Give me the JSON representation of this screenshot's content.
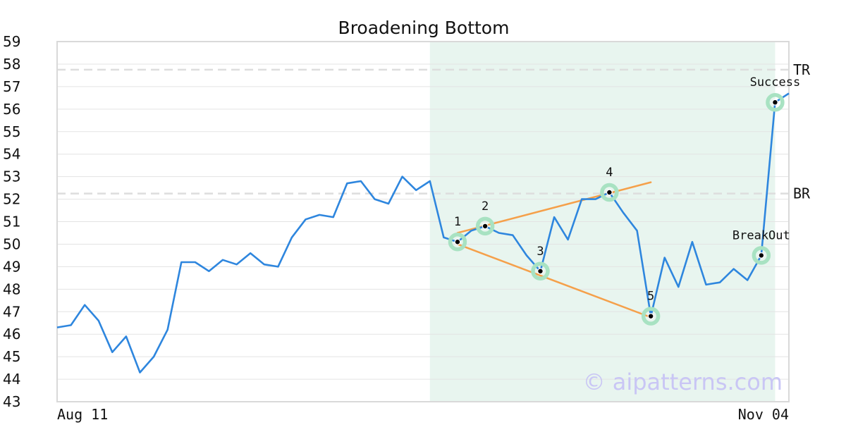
{
  "chart_data": {
    "type": "line",
    "title": "Broadening Bottom",
    "watermark": "© aipatterns.com",
    "ylim": [
      43,
      59
    ],
    "yticks": [
      43,
      44,
      45,
      46,
      47,
      48,
      49,
      50,
      51,
      52,
      53,
      54,
      55,
      56,
      57,
      58,
      59
    ],
    "x_tick_labels": [
      "Aug 11",
      "Nov 04"
    ],
    "colors": {
      "line": "#2e86de",
      "trend": "#f5a04a",
      "highlight": "#e8f5ef",
      "marker_ring": "#a8e2c2",
      "grid": "#e3e3e3",
      "reference": "#dddddd"
    },
    "values": [
      46.3,
      46.4,
      47.3,
      46.6,
      45.2,
      45.9,
      44.3,
      45.0,
      46.2,
      49.2,
      49.2,
      48.8,
      49.3,
      49.1,
      49.6,
      49.1,
      49.0,
      50.3,
      51.1,
      51.3,
      51.2,
      52.7,
      52.8,
      52.0,
      51.8,
      53.0,
      52.4,
      52.8,
      50.3,
      50.1,
      50.6,
      50.8,
      50.5,
      50.4,
      49.5,
      48.8,
      51.2,
      50.2,
      52.0,
      52.0,
      52.3,
      51.4,
      50.6,
      46.8,
      49.4,
      48.1,
      50.1,
      48.2,
      48.3,
      48.9,
      48.4,
      49.5,
      56.3,
      56.7
    ],
    "highlight_range": [
      27,
      52
    ],
    "pattern_points": [
      {
        "label": "1",
        "index": 29,
        "value": 50.1
      },
      {
        "label": "2",
        "index": 31,
        "value": 50.8
      },
      {
        "label": "3",
        "index": 35,
        "value": 48.8
      },
      {
        "label": "4",
        "index": 40,
        "value": 52.3
      },
      {
        "label": "5",
        "index": 43,
        "value": 46.8
      },
      {
        "label": "BreakOut",
        "index": 51,
        "value": 49.5
      },
      {
        "label": "Success",
        "index": 52,
        "value": 56.3
      }
    ],
    "trend_lines": [
      {
        "from": [
          29,
          50.5
        ],
        "to": [
          43.0,
          52.75
        ]
      },
      {
        "from": [
          29,
          50.0
        ],
        "to": [
          43.0,
          46.75
        ]
      }
    ],
    "reference_lines": [
      {
        "label": "TR",
        "value": 57.75
      },
      {
        "label": "BR",
        "value": 52.25
      }
    ]
  }
}
